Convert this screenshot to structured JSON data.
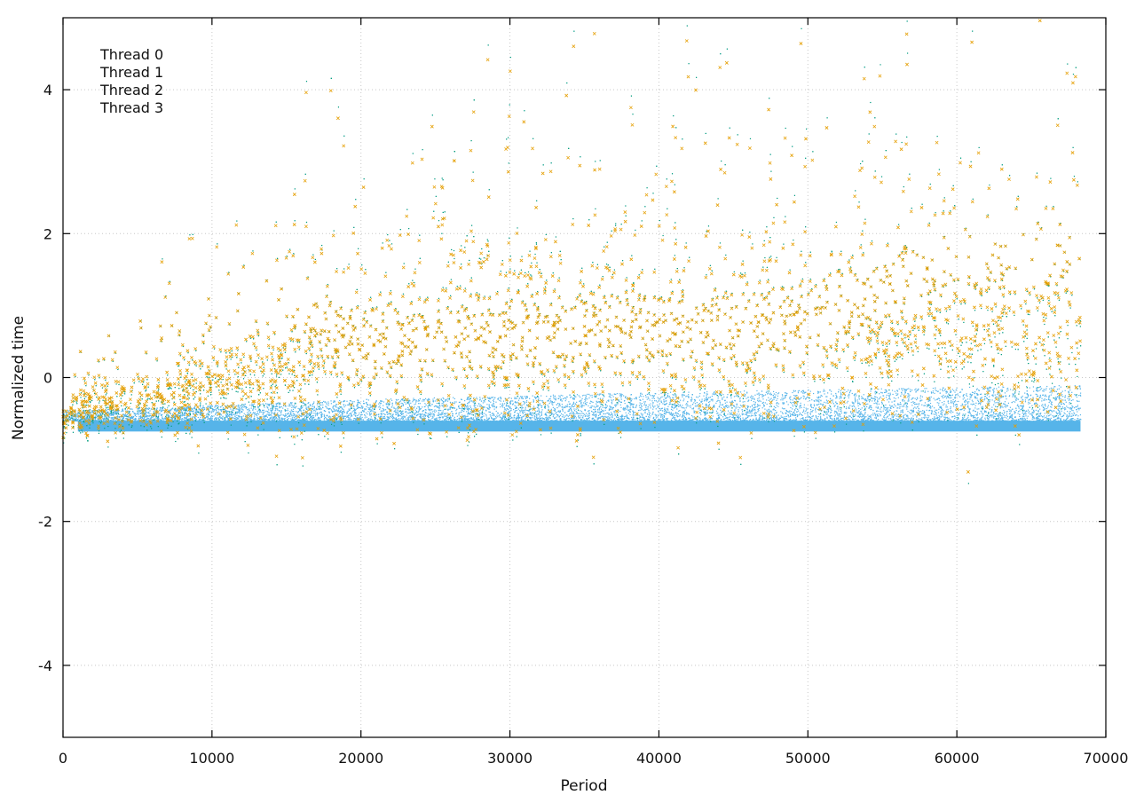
{
  "chart_data": {
    "type": "scatter",
    "title": "",
    "xlabel": "Period",
    "ylabel": "Normalized time",
    "xlim": [
      0,
      70000
    ],
    "ylim": [
      -5,
      5
    ],
    "xticks": [
      0,
      10000,
      20000,
      30000,
      40000,
      50000,
      60000,
      70000
    ],
    "yticks": [
      -4,
      -2,
      0,
      2,
      4
    ],
    "grid": true,
    "legend_position": "top-left",
    "x_max_data": 68300,
    "series": [
      {
        "name": "Thread 0",
        "color": "#56b4e9",
        "marker": "dot",
        "description_points": [
          [
            0,
            -0.65
          ],
          [
            1000,
            -0.68
          ],
          [
            10000,
            -0.68
          ],
          [
            30000,
            -0.67
          ],
          [
            50000,
            -0.67
          ],
          [
            68300,
            -0.67
          ]
        ],
        "band_upper": [
          [
            1000,
            -0.6
          ],
          [
            20000,
            -0.45
          ],
          [
            40000,
            -0.35
          ],
          [
            68300,
            -0.25
          ]
        ]
      },
      {
        "name": "Thread 1",
        "color": "#009e73",
        "marker": "dot",
        "trend": [
          [
            0,
            -0.6
          ],
          [
            5000,
            -0.4
          ],
          [
            10000,
            -0.15
          ],
          [
            15000,
            0.05
          ],
          [
            20000,
            0.3
          ],
          [
            30000,
            0.45
          ],
          [
            40000,
            0.55
          ],
          [
            50000,
            0.6
          ],
          [
            60000,
            0.6
          ],
          [
            68300,
            0.65
          ]
        ]
      },
      {
        "name": "Thread 2",
        "color": "#56b4e9",
        "marker": "dot",
        "trend": [
          [
            0,
            -0.6
          ],
          [
            5000,
            -0.4
          ],
          [
            10000,
            -0.15
          ],
          [
            15000,
            0.05
          ],
          [
            20000,
            0.3
          ],
          [
            30000,
            0.45
          ],
          [
            40000,
            0.55
          ],
          [
            50000,
            0.6
          ],
          [
            60000,
            0.6
          ],
          [
            68300,
            0.65
          ]
        ]
      },
      {
        "name": "Thread 3",
        "color": "#e69f00",
        "marker": "cross",
        "trend": [
          [
            0,
            -0.55
          ],
          [
            5000,
            -0.35
          ],
          [
            10000,
            -0.1
          ],
          [
            15000,
            0.1
          ],
          [
            20000,
            0.3
          ],
          [
            30000,
            0.45
          ],
          [
            40000,
            0.55
          ],
          [
            50000,
            0.6
          ],
          [
            60000,
            0.65
          ],
          [
            68300,
            0.7
          ]
        ]
      }
    ]
  }
}
